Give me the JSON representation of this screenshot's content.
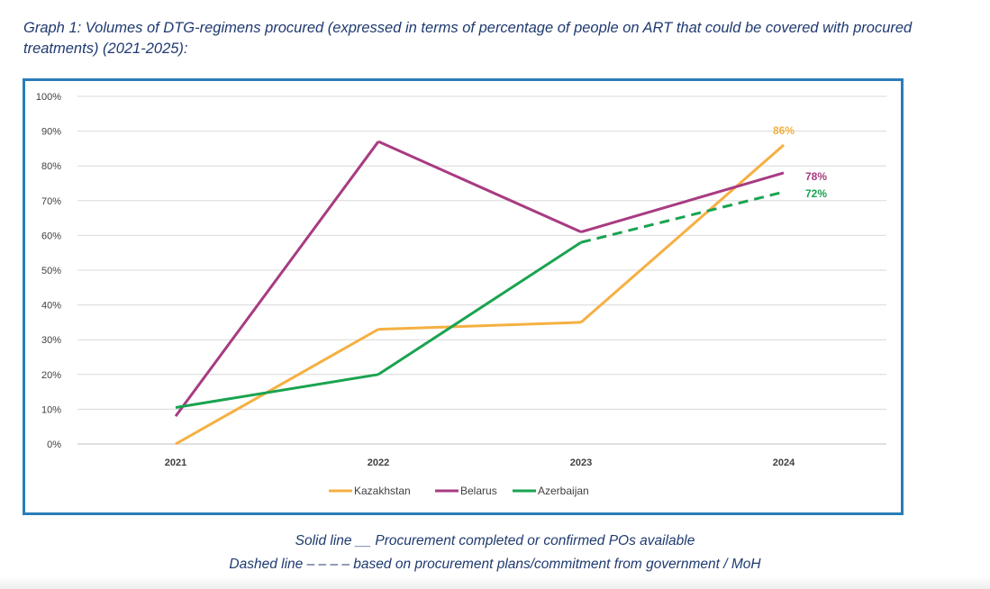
{
  "title": "Graph 1: Volumes of DTG-regimens procured (expressed in terms of percentage of people on ART that could be covered with procured treatments) (2021-2025):",
  "notes": {
    "solid": "Solid line __ Procurement completed or confirmed POs available",
    "dashed": "Dashed line – – – – based on procurement plans/commitment from government / MoH"
  },
  "chart_data": {
    "type": "line",
    "title": "",
    "xlabel": "",
    "ylabel": "",
    "x": [
      "2021",
      "2022",
      "2023",
      "2024"
    ],
    "ylim": [
      0,
      100
    ],
    "yticks": [
      0,
      10,
      20,
      30,
      40,
      50,
      60,
      70,
      80,
      90,
      100
    ],
    "ytick_labels": [
      "0%",
      "10%",
      "20%",
      "30%",
      "40%",
      "50%",
      "60%",
      "70%",
      "80%",
      "90%",
      "100%"
    ],
    "grid": true,
    "legend_position": "bottom",
    "series": [
      {
        "name": "Kazakhstan",
        "color": "#f5b041",
        "values": [
          0,
          33,
          35,
          86
        ],
        "dashed_from_index": null,
        "end_label": "86%"
      },
      {
        "name": "Belarus",
        "color": "#a83b82",
        "values": [
          8,
          87,
          61,
          78
        ],
        "dashed_from_index": null,
        "end_label": "78%"
      },
      {
        "name": "Azerbaijan",
        "color": "#1aa350",
        "values": [
          10.5,
          20,
          58,
          72.5
        ],
        "dashed_from_index": 2,
        "end_label": "72%"
      }
    ]
  }
}
